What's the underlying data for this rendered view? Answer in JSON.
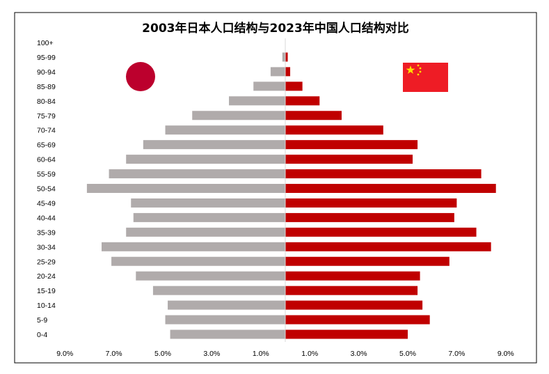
{
  "chart_data": {
    "type": "bar",
    "orientation": "horizontal-diverging",
    "title": "2003年日本人口结构与2023年中国人口结构对比",
    "categories": [
      "0-4",
      "5-9",
      "10-14",
      "15-19",
      "20-24",
      "25-29",
      "30-34",
      "35-39",
      "40-44",
      "45-49",
      "50-54",
      "55-59",
      "60-64",
      "65-69",
      "70-74",
      "75-79",
      "80-84",
      "85-89",
      "90-94",
      "95-99",
      "100+"
    ],
    "x_ticks": [
      "9.0%",
      "7.0%",
      "5.0%",
      "3.0%",
      "1.0%",
      "1.0%",
      "3.0%",
      "5.0%",
      "7.0%",
      "9.0%"
    ],
    "xlim": [
      -9.0,
      9.0
    ],
    "grid": false,
    "legend": "none",
    "series": [
      {
        "side": "left",
        "color": "#b0abab",
        "icon": "japan-flag-icon",
        "values": [
          4.7,
          4.9,
          4.8,
          5.4,
          6.1,
          7.1,
          7.5,
          6.5,
          6.2,
          6.3,
          8.1,
          7.2,
          6.5,
          5.8,
          4.9,
          3.8,
          2.3,
          1.3,
          0.6,
          0.12,
          0.0
        ]
      },
      {
        "side": "right",
        "color": "#c00000",
        "icon": "china-flag-icon",
        "values": [
          5.0,
          5.9,
          5.6,
          5.4,
          5.5,
          6.7,
          8.4,
          7.8,
          6.9,
          7.0,
          8.6,
          8.0,
          5.2,
          5.4,
          4.0,
          2.3,
          1.4,
          0.7,
          0.2,
          0.1,
          0.0
        ]
      }
    ]
  }
}
